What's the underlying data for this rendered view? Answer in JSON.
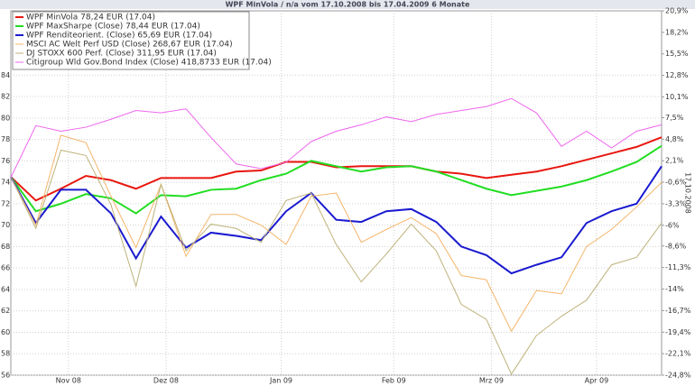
{
  "chart_data": {
    "type": "line",
    "title": "WPF MinVola / n/a vom 17.10.2008 bis 17.04.2009 6 Monate",
    "y2label": "17.10.2008",
    "x": [
      0,
      1,
      2,
      3,
      4,
      5,
      6,
      7,
      8,
      9,
      10,
      11,
      12,
      13,
      14,
      15,
      16,
      17,
      18,
      19,
      20,
      21,
      22,
      23,
      24,
      25,
      26
    ],
    "xlim": [
      0,
      26
    ],
    "xticks": [
      {
        "value": 2.3,
        "label": "Nov 08"
      },
      {
        "value": 6.2,
        "label": "Dez 08"
      },
      {
        "value": 10.8,
        "label": "Jan 09"
      },
      {
        "value": 15.3,
        "label": "Feb 09"
      },
      {
        "value": 19.2,
        "label": "Mrz 09"
      },
      {
        "value": 23.4,
        "label": "Apr 09"
      }
    ],
    "ylim": [
      56,
      90
    ],
    "yticks": [
      56,
      58,
      60,
      62,
      64,
      66,
      68,
      70,
      72,
      74,
      76,
      78,
      80,
      82,
      84
    ],
    "y2lim": [
      -24.8,
      20.9
    ],
    "y2ticks": [
      {
        "value": -24.8,
        "label": "-24,8%"
      },
      {
        "value": -22.1,
        "label": "-22,1%"
      },
      {
        "value": -19.4,
        "label": "-19,4%"
      },
      {
        "value": -16.7,
        "label": "-16,7%"
      },
      {
        "value": -14,
        "label": "-14%"
      },
      {
        "value": -11.3,
        "label": "-11,3%"
      },
      {
        "value": -8.6,
        "label": "-8,6%"
      },
      {
        "value": -6,
        "label": "-6%"
      },
      {
        "value": -3.3,
        "label": "-3,3%"
      },
      {
        "value": -0.6,
        "label": "-0,6%"
      },
      {
        "value": 2.1,
        "label": "2,1%"
      },
      {
        "value": 4.8,
        "label": "4,8%"
      },
      {
        "value": 7.5,
        "label": "7,5%"
      },
      {
        "value": 10.1,
        "label": "10,1%"
      },
      {
        "value": 12.8,
        "label": "12,8%"
      },
      {
        "value": 15.5,
        "label": "15,5%"
      },
      {
        "value": 18.2,
        "label": "18,2%"
      },
      {
        "value": 20.9,
        "label": "20,9%"
      }
    ],
    "grid": true,
    "legend": "top-left",
    "series": [
      {
        "name": "WPF MinVola 78,24 EUR (17.04)",
        "color": "#e8170f",
        "width": 2,
        "values": [
          74.5,
          72.3,
          73.4,
          74.6,
          74.2,
          73.4,
          74.4,
          74.4,
          74.4,
          75.0,
          75.1,
          75.9,
          75.9,
          75.4,
          75.5,
          75.5,
          75.5,
          75.0,
          74.8,
          74.4,
          74.7,
          75.0,
          75.5,
          76.1,
          76.7,
          77.3,
          78.2
        ]
      },
      {
        "name": "WPF MaxSharpe (Close) 78,44 EUR (17.04)",
        "color": "#22dd22",
        "width": 2,
        "values": [
          74.5,
          71.3,
          72.0,
          72.9,
          72.5,
          71.1,
          72.8,
          72.7,
          73.3,
          73.4,
          74.2,
          74.8,
          76.0,
          75.5,
          75.0,
          75.4,
          75.5,
          75.0,
          74.2,
          73.4,
          72.8,
          73.2,
          73.6,
          74.2,
          75.0,
          75.9,
          77.4
        ]
      },
      {
        "name": "WPF Renditeorient. (Close) 65,69 EUR (17.04)",
        "color": "#1a1ad0",
        "width": 2,
        "values": [
          74.5,
          70.2,
          73.3,
          73.3,
          71.1,
          66.9,
          70.8,
          67.9,
          69.3,
          69.0,
          68.6,
          71.3,
          73.0,
          70.5,
          70.3,
          71.3,
          71.5,
          70.3,
          68.0,
          67.2,
          65.5,
          66.3,
          67.0,
          70.2,
          71.3,
          72.0,
          75.5
        ]
      },
      {
        "name": "MSCI AC Welt Perf USD (Close) 268,67 EUR (17.04)",
        "color": "#f5b56a",
        "width": 1,
        "values": [
          74.5,
          70.0,
          78.4,
          77.7,
          72.7,
          67.9,
          73.8,
          67.1,
          71.0,
          71.0,
          70.0,
          68.2,
          72.7,
          73.0,
          68.4,
          69.6,
          70.7,
          69.2,
          65.3,
          64.9,
          60.1,
          63.9,
          63.6,
          68.0,
          69.6,
          71.7,
          74.0
        ]
      },
      {
        "name": "DJ STOXX 600 Perf. (Close) 311,95 EUR (17.04)",
        "color": "#bdb27a",
        "width": 1,
        "values": [
          74.5,
          69.7,
          77.0,
          76.5,
          71.9,
          64.3,
          73.8,
          67.6,
          70.1,
          69.7,
          68.4,
          72.3,
          73.0,
          68.2,
          64.7,
          67.3,
          70.1,
          67.6,
          62.6,
          61.2,
          56.1,
          59.7,
          61.5,
          63.0,
          66.3,
          67.0,
          70.2
        ]
      },
      {
        "name": "Citigroup Wld Gov.Bond Index (Close) 418,8733 EUR (17.04)",
        "color": "#ee66ee",
        "width": 1,
        "axis": "y2",
        "values": [
          0,
          6.5,
          5.8,
          6.3,
          7.3,
          8.4,
          8.1,
          8.6,
          5.0,
          1.7,
          1.1,
          1.9,
          4.5,
          5.8,
          6.6,
          7.6,
          7.0,
          7.9,
          8.4,
          8.9,
          9.9,
          8.1,
          3.9,
          5.8,
          3.7,
          5.8,
          6.6
        ]
      }
    ]
  }
}
